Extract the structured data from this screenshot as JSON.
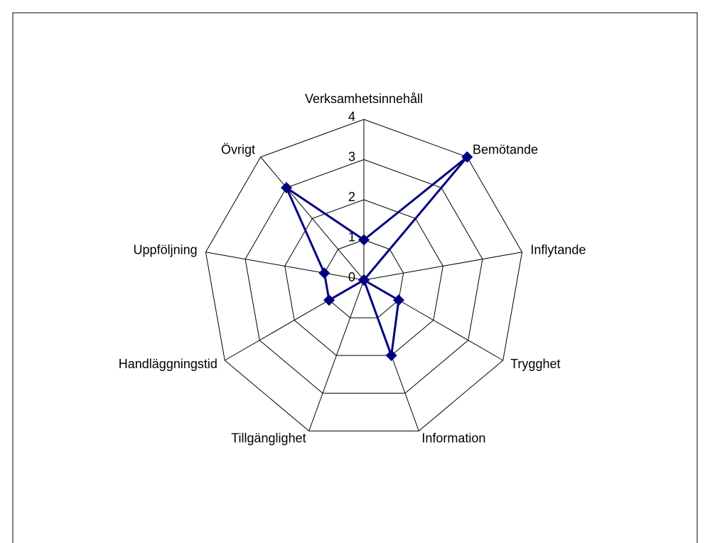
{
  "chart_data": {
    "type": "radar",
    "categories": [
      "Verksamhetsinnehåll",
      "Bemötande",
      "Inflytande",
      "Trygghet",
      "Information",
      "Tillgänglighet",
      "Handläggningstid",
      "Uppföljning",
      "Övrigt"
    ],
    "values": [
      1,
      4,
      0,
      1,
      2,
      0,
      1,
      1,
      3
    ],
    "color": "#000080",
    "ylim": [
      0,
      4
    ],
    "yticks": [
      0,
      1,
      2,
      3,
      4
    ],
    "grid": true
  }
}
